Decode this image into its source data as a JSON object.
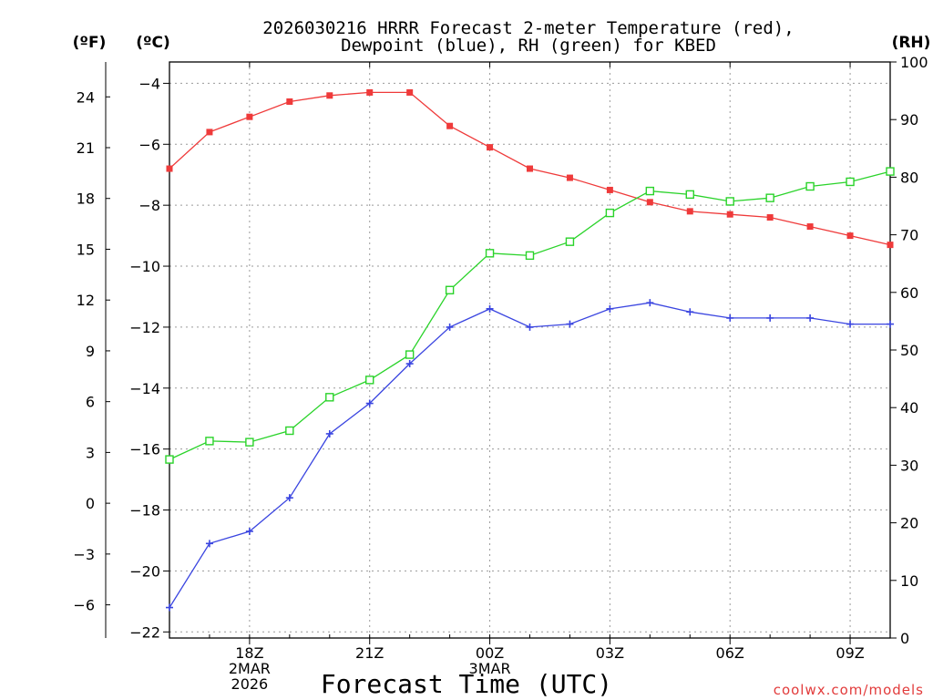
{
  "chart_data": {
    "type": "line",
    "title_line1": "2026030216 HRRR Forecast 2-meter Temperature (red),",
    "title_line2": "Dewpoint (blue), RH (green) for KBED",
    "xlabel": "Forecast Time (UTC)",
    "credit": "coolwx.com/models",
    "unit_labels": {
      "f": "(ºF)",
      "c": "(ºC)",
      "rh": "(RH)"
    },
    "x_hours": [
      16,
      17,
      18,
      19,
      20,
      21,
      22,
      23,
      24,
      25,
      26,
      27,
      28,
      29,
      30,
      31,
      32,
      33,
      34
    ],
    "xlim": [
      16,
      34
    ],
    "x_ticks": [
      {
        "hour": 18,
        "lines": [
          "18Z",
          "2MAR",
          "2026"
        ]
      },
      {
        "hour": 21,
        "lines": [
          "21Z"
        ]
      },
      {
        "hour": 24,
        "lines": [
          "00Z",
          "3MAR"
        ]
      },
      {
        "hour": 27,
        "lines": [
          "03Z"
        ]
      },
      {
        "hour": 30,
        "lines": [
          "06Z"
        ]
      },
      {
        "hour": 33,
        "lines": [
          "09Z"
        ]
      }
    ],
    "celsius_axis": {
      "ylim": [
        -22.2,
        -3.3
      ],
      "ticks": [
        -22,
        -20,
        -18,
        -16,
        -14,
        -12,
        -10,
        -8,
        -6,
        -4
      ]
    },
    "fahrenheit_axis": {
      "ticks": [
        -6,
        -3,
        0,
        3,
        6,
        9,
        12,
        15,
        18,
        21,
        24
      ]
    },
    "rh_axis": {
      "ylim": [
        0,
        100
      ],
      "ticks": [
        0,
        10,
        20,
        30,
        40,
        50,
        60,
        70,
        80,
        90,
        100
      ]
    },
    "series": [
      {
        "name": "Temperature",
        "axis": "c",
        "color": "#ef3a3a",
        "marker": "filled-square",
        "values": [
          -6.8,
          -5.6,
          -5.1,
          -4.6,
          -4.4,
          -4.3,
          -4.3,
          -5.4,
          -6.1,
          -6.8,
          -7.1,
          -7.5,
          -7.9,
          -8.2,
          -8.3,
          -8.4,
          -8.7,
          -9.0,
          -9.3
        ]
      },
      {
        "name": "Dewpoint",
        "axis": "c",
        "color": "#3a45e0",
        "marker": "plus",
        "values": [
          -21.2,
          -19.1,
          -18.7,
          -17.6,
          -15.5,
          -14.5,
          -13.2,
          -12.0,
          -11.4,
          -12.0,
          -11.9,
          -11.4,
          -11.2,
          -11.5,
          -11.7,
          -11.7,
          -11.7,
          -11.9,
          -11.9
        ]
      },
      {
        "name": "RH",
        "axis": "rh",
        "color": "#2ad32a",
        "marker": "open-square",
        "values": [
          31,
          34.2,
          34,
          36,
          41.8,
          44.8,
          49.2,
          60.4,
          66.8,
          66.4,
          68.8,
          73.8,
          77.6,
          77,
          75.8,
          76.4,
          78.4,
          79.2,
          81
        ]
      }
    ]
  }
}
